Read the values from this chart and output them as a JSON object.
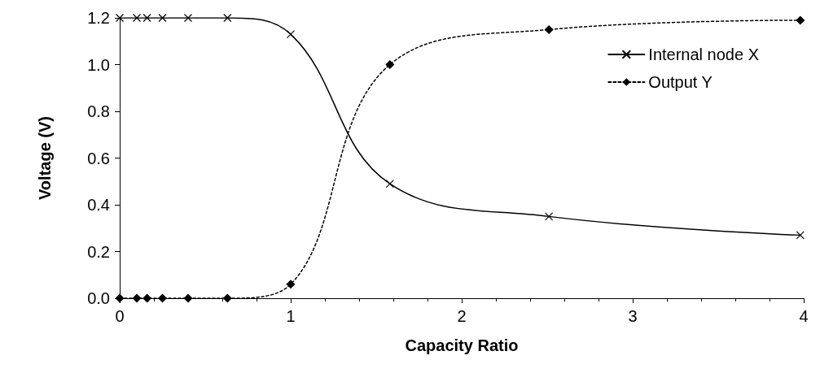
{
  "chart_data": {
    "type": "line",
    "xlabel": "Capacity Ratio",
    "ylabel": "Voltage (V)",
    "xlim": [
      0,
      4
    ],
    "xticks": [
      0,
      1,
      2,
      3,
      4
    ],
    "ylim": [
      0,
      1.2
    ],
    "yticks": [
      {
        "value": 0,
        "label": "0.0"
      },
      0.2,
      0.4,
      0.6,
      0.8,
      {
        "value": 1,
        "label": "1.0"
      },
      1.2
    ],
    "grid": false,
    "legend": "top right",
    "series": [
      {
        "name": "Internal node X",
        "color": "#000000",
        "marker": "cross",
        "line_style": "solid",
        "x": [
          0,
          0.1,
          0.16,
          0.25,
          0.4,
          0.63,
          1,
          1.58,
          2.51,
          3.98
        ],
        "values": [
          1.2,
          1.2,
          1.2,
          1.2,
          1.2,
          1.2,
          1.13,
          0.49,
          0.35,
          0.27
        ]
      },
      {
        "name": "Output Y",
        "color": "#000000",
        "marker": "diamond",
        "line_style": "dotted",
        "x": [
          0,
          0.1,
          0.16,
          0.25,
          0.4,
          0.63,
          1,
          1.58,
          2.51,
          3.98
        ],
        "values": [
          0,
          0,
          0,
          0,
          0,
          0,
          0.06,
          1.0,
          1.15,
          1.19
        ]
      }
    ]
  }
}
